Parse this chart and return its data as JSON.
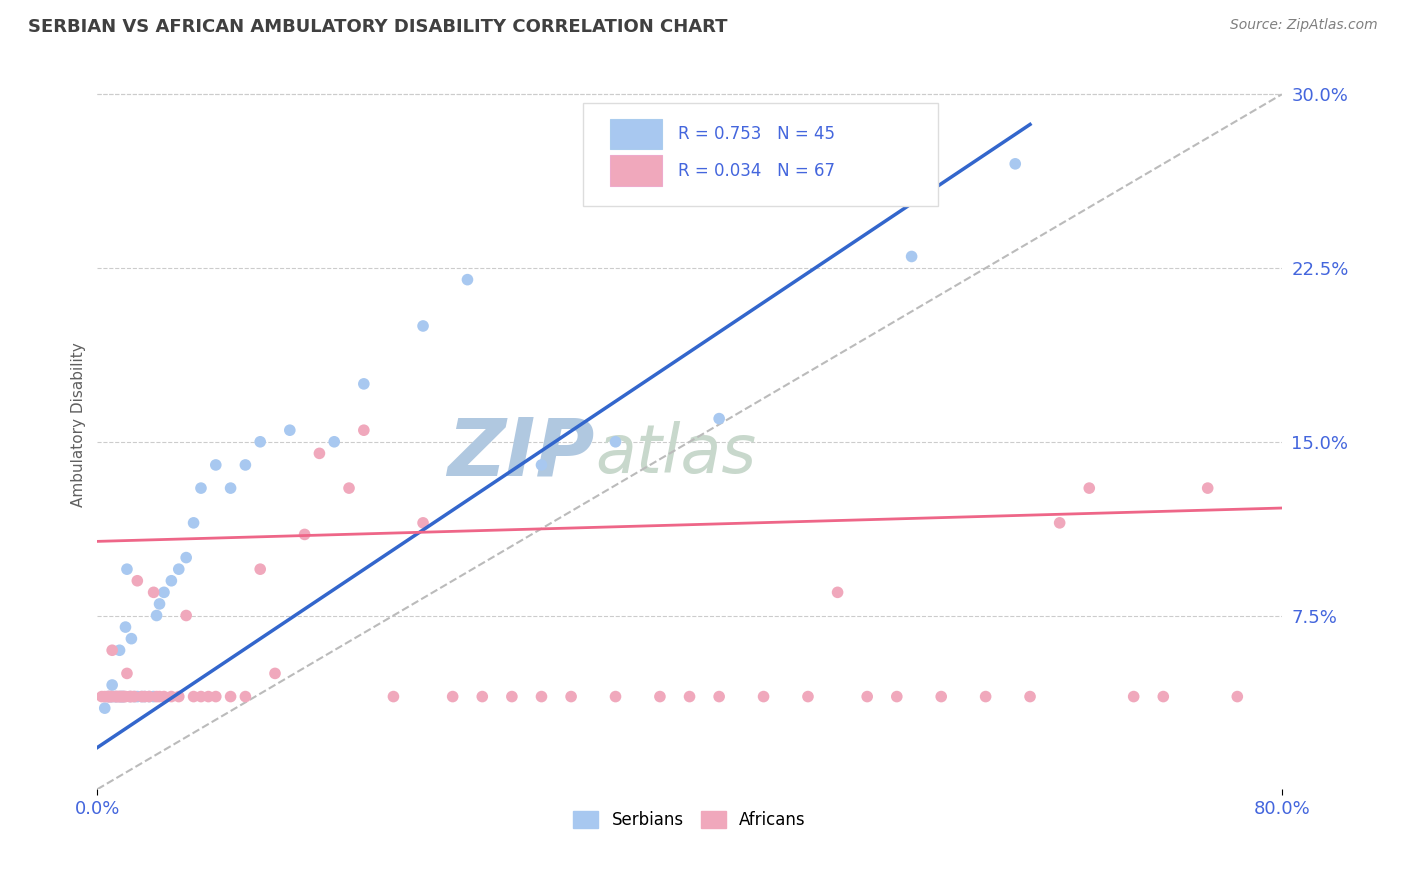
{
  "title": "SERBIAN VS AFRICAN AMBULATORY DISABILITY CORRELATION CHART",
  "source": "Source: ZipAtlas.com",
  "ylabel": "Ambulatory Disability",
  "yticks": [
    0.0,
    0.075,
    0.15,
    0.225,
    0.3
  ],
  "ytick_labels": [
    "",
    "7.5%",
    "15.0%",
    "22.5%",
    "30.0%"
  ],
  "xlim": [
    0.0,
    0.8
  ],
  "ylim": [
    0.0,
    0.315
  ],
  "serbian_color": "#A8C8F0",
  "african_color": "#F0A8BC",
  "serbian_line_color": "#3366CC",
  "african_line_color": "#EE6688",
  "diag_color": "#BBBBBB",
  "serbian_R": 0.753,
  "serbian_N": 45,
  "african_R": 0.034,
  "african_N": 67,
  "watermark_color": "#C8D8EE",
  "grid_color": "#CCCCCC",
  "background_color": "#FFFFFF",
  "title_color": "#404040",
  "axis_label_color": "#4466DD",
  "source_color": "#808080",
  "legend_serbian_label": "Serbians",
  "legend_african_label": "Africans",
  "serbian_scatter_x": [
    0.005,
    0.007,
    0.008,
    0.009,
    0.01,
    0.01,
    0.012,
    0.013,
    0.015,
    0.015,
    0.016,
    0.017,
    0.018,
    0.019,
    0.02,
    0.022,
    0.023,
    0.025,
    0.027,
    0.03,
    0.032,
    0.035,
    0.038,
    0.04,
    0.042,
    0.045,
    0.05,
    0.055,
    0.06,
    0.065,
    0.07,
    0.08,
    0.09,
    0.1,
    0.11,
    0.13,
    0.16,
    0.18,
    0.22,
    0.25,
    0.3,
    0.35,
    0.42,
    0.55,
    0.62
  ],
  "serbian_scatter_y": [
    0.035,
    0.04,
    0.04,
    0.04,
    0.04,
    0.045,
    0.04,
    0.04,
    0.04,
    0.06,
    0.04,
    0.04,
    0.04,
    0.07,
    0.095,
    0.04,
    0.065,
    0.04,
    0.04,
    0.04,
    0.04,
    0.04,
    0.04,
    0.075,
    0.08,
    0.085,
    0.09,
    0.095,
    0.1,
    0.115,
    0.13,
    0.14,
    0.13,
    0.14,
    0.15,
    0.155,
    0.15,
    0.175,
    0.2,
    0.22,
    0.14,
    0.15,
    0.16,
    0.23,
    0.27
  ],
  "african_scatter_x": [
    0.003,
    0.005,
    0.007,
    0.008,
    0.009,
    0.01,
    0.01,
    0.012,
    0.013,
    0.014,
    0.015,
    0.016,
    0.017,
    0.018,
    0.019,
    0.02,
    0.022,
    0.023,
    0.025,
    0.027,
    0.03,
    0.032,
    0.035,
    0.038,
    0.04,
    0.042,
    0.045,
    0.05,
    0.055,
    0.06,
    0.065,
    0.07,
    0.075,
    0.08,
    0.09,
    0.1,
    0.11,
    0.12,
    0.14,
    0.15,
    0.17,
    0.18,
    0.2,
    0.22,
    0.24,
    0.26,
    0.28,
    0.3,
    0.32,
    0.35,
    0.38,
    0.4,
    0.42,
    0.45,
    0.48,
    0.5,
    0.52,
    0.54,
    0.57,
    0.6,
    0.63,
    0.65,
    0.67,
    0.7,
    0.72,
    0.75,
    0.77
  ],
  "african_scatter_y": [
    0.04,
    0.04,
    0.04,
    0.04,
    0.04,
    0.04,
    0.06,
    0.04,
    0.04,
    0.04,
    0.04,
    0.04,
    0.04,
    0.04,
    0.04,
    0.05,
    0.04,
    0.04,
    0.04,
    0.09,
    0.04,
    0.04,
    0.04,
    0.085,
    0.04,
    0.04,
    0.04,
    0.04,
    0.04,
    0.075,
    0.04,
    0.04,
    0.04,
    0.04,
    0.04,
    0.04,
    0.095,
    0.05,
    0.11,
    0.145,
    0.13,
    0.155,
    0.04,
    0.115,
    0.04,
    0.04,
    0.04,
    0.04,
    0.04,
    0.04,
    0.04,
    0.04,
    0.04,
    0.04,
    0.04,
    0.085,
    0.04,
    0.04,
    0.04,
    0.04,
    0.04,
    0.115,
    0.13,
    0.04,
    0.04,
    0.13,
    0.04
  ]
}
